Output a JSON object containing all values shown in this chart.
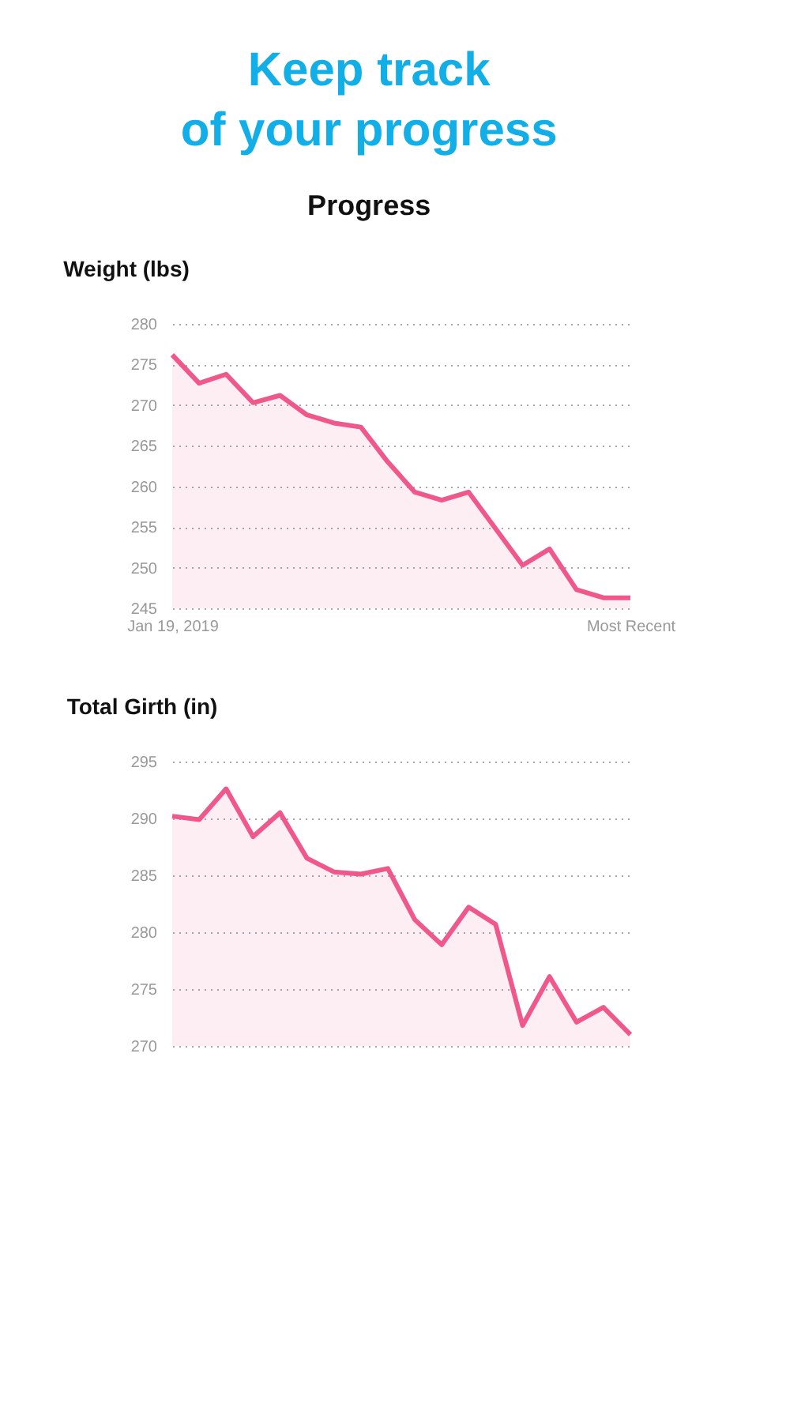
{
  "chart_data": [
    {
      "type": "area",
      "title": "Weight (lbs)",
      "annotations": [
        "Keep track of your progress",
        "Progress"
      ],
      "categories": [
        "Jan 19, 2019",
        null,
        null,
        null,
        null,
        null,
        null,
        null,
        null,
        null,
        null,
        null,
        null,
        null,
        null,
        null,
        null,
        "Most Recent"
      ],
      "series": [
        {
          "color": "#f0588a",
          "values": [
            276.2,
            272.7,
            273.8,
            270.3,
            271.2,
            268.8,
            267.8,
            267.3,
            263.0,
            259.3,
            258.3,
            259.3,
            254.8,
            250.3,
            252.3,
            247.3,
            246.3,
            246.3
          ]
        }
      ],
      "ylim": [
        245,
        280
      ],
      "yticks": [
        245,
        250,
        255,
        260,
        265,
        270,
        275,
        280
      ],
      "grid": "y"
    },
    {
      "type": "area",
      "title": "Total Girth (in)",
      "categories": [
        null,
        null,
        null,
        null,
        null,
        null,
        null,
        null,
        null,
        null,
        null,
        null,
        null,
        null,
        null,
        null,
        null,
        null
      ],
      "series": [
        {
          "color": "#f0588a",
          "values": [
            290.2,
            289.9,
            292.6,
            288.4,
            290.5,
            286.5,
            285.3,
            285.1,
            285.6,
            281.1,
            278.9,
            282.2,
            280.7,
            271.8,
            276.1,
            272.1,
            273.4,
            271.0
          ]
        }
      ],
      "ylim": [
        270,
        295
      ],
      "yticks": [
        270,
        275,
        280,
        285,
        290,
        295
      ],
      "grid": "y",
      "tick_labels": "y"
    }
  ]
}
